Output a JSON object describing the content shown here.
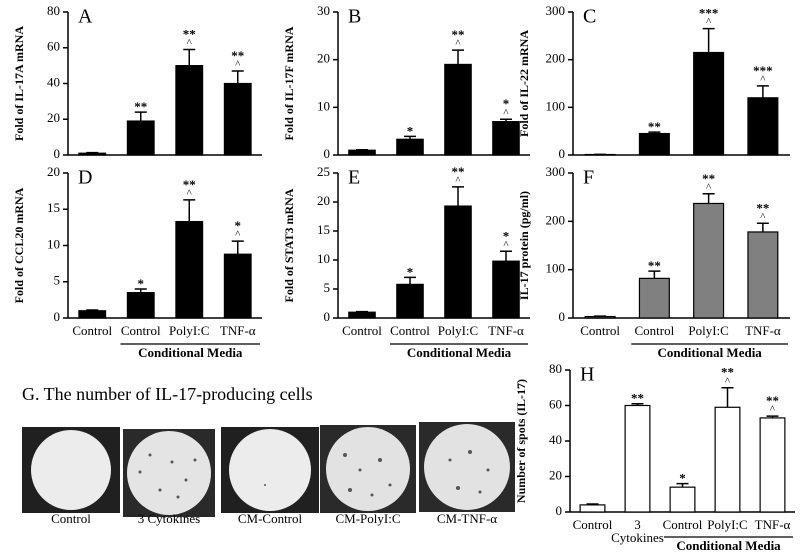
{
  "chart_data": [
    {
      "type": "bar",
      "panel": "A",
      "ylabel": "Fold of IL-17A mRNA",
      "color": "#000000",
      "values": [
        1,
        19,
        50,
        40
      ],
      "errors": [
        0.3,
        5,
        9,
        7
      ],
      "stars": [
        null,
        "**",
        "**",
        "**"
      ],
      "carets": [
        null,
        null,
        "^",
        "^"
      ],
      "ylim": [
        0,
        80
      ],
      "yticks": [
        0,
        20,
        40,
        60,
        80
      ]
    },
    {
      "type": "bar",
      "panel": "B",
      "ylabel": "Fold of IL-17F mRNA",
      "color": "#000000",
      "values": [
        1,
        3.3,
        19,
        7
      ],
      "errors": [
        0.1,
        0.6,
        3,
        0.5
      ],
      "stars": [
        null,
        "*",
        "**",
        "*"
      ],
      "carets": [
        null,
        null,
        "^",
        "^"
      ],
      "ylim": [
        0,
        30
      ],
      "yticks": [
        0,
        10,
        20,
        30
      ]
    },
    {
      "type": "bar",
      "panel": "C",
      "ylabel": "Fold of IL-22 mRNA",
      "color": "#000000",
      "values": [
        1,
        45,
        215,
        120
      ],
      "errors": [
        0.3,
        3,
        50,
        25
      ],
      "stars": [
        null,
        "**",
        "***",
        "***"
      ],
      "carets": [
        null,
        null,
        "^",
        "^"
      ],
      "ylim": [
        0,
        300
      ],
      "yticks": [
        0,
        100,
        200,
        300
      ]
    },
    {
      "type": "bar",
      "panel": "D",
      "ylabel": "Fold of CCL20 mRNA",
      "color": "#000000",
      "categories": [
        "Control",
        "Control",
        "PolyI:C",
        "TNF-α"
      ],
      "group_label": "Conditional Media",
      "values": [
        1,
        3.5,
        13.3,
        8.8
      ],
      "errors": [
        0.1,
        0.5,
        3,
        1.8
      ],
      "stars": [
        null,
        "*",
        "**",
        "*"
      ],
      "carets": [
        null,
        null,
        "^",
        "^"
      ],
      "ylim": [
        0,
        20
      ],
      "yticks": [
        0,
        5,
        10,
        15,
        20
      ]
    },
    {
      "type": "bar",
      "panel": "E",
      "ylabel": "Fold of STAT3 mRNA",
      "color": "#000000",
      "categories": [
        "Control",
        "Control",
        "PolyI:C",
        "TNF-α"
      ],
      "group_label": "Conditional Media",
      "values": [
        1,
        5.8,
        19.3,
        9.8
      ],
      "errors": [
        0.1,
        1.2,
        3.3,
        1.7
      ],
      "stars": [
        null,
        "*",
        "**",
        "*"
      ],
      "carets": [
        null,
        null,
        "^",
        "^"
      ],
      "ylim": [
        0,
        25
      ],
      "yticks": [
        0,
        5,
        10,
        15,
        20,
        25
      ]
    },
    {
      "type": "bar",
      "panel": "F",
      "ylabel": "IL-17 protein (pg/ml)",
      "color": "#808080",
      "categories": [
        "Control",
        "Control",
        "PolyI:C",
        "TNF-α"
      ],
      "group_label": "Conditional Media",
      "values": [
        3,
        82,
        237,
        178
      ],
      "errors": [
        1,
        15,
        20,
        18
      ],
      "stars": [
        null,
        "**",
        "**",
        "**"
      ],
      "carets": [
        null,
        null,
        "^",
        "^"
      ],
      "ylim": [
        0,
        300
      ],
      "yticks": [
        0,
        100,
        200,
        300
      ]
    },
    {
      "type": "bar",
      "panel": "H",
      "ylabel": "Number of spots (IL-17)",
      "color": "#ffffff",
      "categories": [
        "Control",
        "3 Cytokines",
        "Control",
        "PolyI:C",
        "TNF-α"
      ],
      "group_label": "Conditional Media",
      "values": [
        4,
        60,
        14,
        59,
        53
      ],
      "errors": [
        0.5,
        1,
        2,
        11,
        1
      ],
      "stars": [
        null,
        "**",
        "*",
        "**",
        "**"
      ],
      "carets": [
        null,
        null,
        null,
        "^",
        "^"
      ],
      "ylim": [
        0,
        80
      ],
      "yticks": [
        0,
        20,
        40,
        60,
        80
      ]
    }
  ],
  "images": {
    "title": "G. The number of IL-17-producing cells",
    "labels": [
      "Control",
      "3 Cytokines",
      "CM-Control",
      "CM-PolyI:C",
      "CM-TNF-α"
    ]
  }
}
